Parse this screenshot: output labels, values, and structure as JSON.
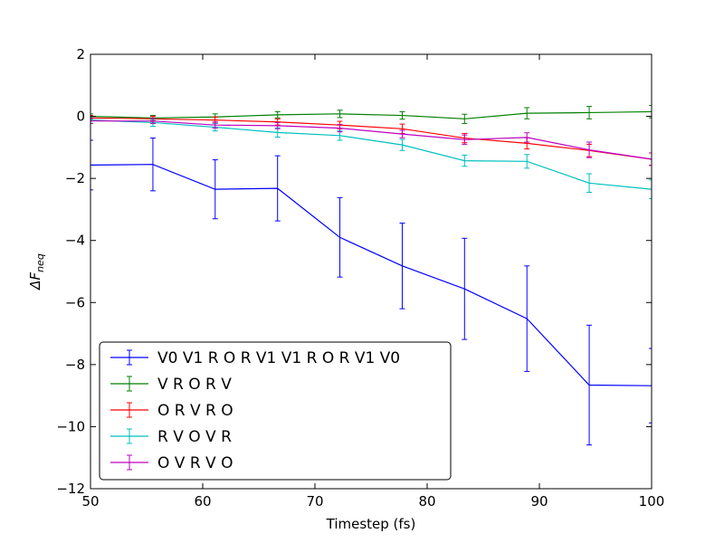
{
  "chart_data": {
    "type": "line",
    "xlabel": "Timestep (fs)",
    "ylabel": "ΔF_neq",
    "ylabel_main": "ΔF",
    "ylabel_sub": "neq",
    "xlim": [
      50,
      100
    ],
    "ylim": [
      -12,
      2
    ],
    "xticks": [
      50,
      60,
      70,
      80,
      90,
      100
    ],
    "yticks": [
      -12,
      -10,
      -8,
      -6,
      -4,
      -2,
      0,
      2
    ],
    "xtick_labels": [
      "50",
      "60",
      "70",
      "80",
      "90",
      "100"
    ],
    "ytick_labels": [
      "−12",
      "−10",
      "−8",
      "−6",
      "−4",
      "−2",
      "0",
      "2"
    ],
    "grid": false,
    "legend_placement": "lower-left",
    "x": [
      50.0,
      55.56,
      61.11,
      66.67,
      72.22,
      77.78,
      83.33,
      88.89,
      94.44,
      100.0
    ],
    "series": [
      {
        "name": "V0 V1 R O R V1 V1 R O R V1 V0",
        "color": "#0000ff",
        "y": [
          -1.57,
          -1.55,
          -2.35,
          -2.32,
          -3.9,
          -4.82,
          -5.56,
          -6.52,
          -8.66,
          -8.68
        ],
        "err": [
          0.8,
          0.85,
          0.95,
          1.05,
          1.28,
          1.38,
          1.63,
          1.7,
          1.93,
          1.2
        ]
      },
      {
        "name": "V R O R V",
        "color": "#008000",
        "y": [
          0.0,
          -0.05,
          -0.02,
          0.05,
          0.08,
          0.03,
          -0.08,
          0.1,
          0.12,
          0.15
        ],
        "err": [
          0.08,
          0.08,
          0.1,
          0.1,
          0.12,
          0.12,
          0.15,
          0.18,
          0.2,
          0.2
        ]
      },
      {
        "name": "O R V R O",
        "color": "#ff0000",
        "y": [
          -0.05,
          -0.08,
          -0.12,
          -0.18,
          -0.28,
          -0.4,
          -0.7,
          -0.87,
          -1.1,
          -1.38
        ],
        "err": [
          0.08,
          0.08,
          0.1,
          0.1,
          0.12,
          0.15,
          0.15,
          0.18,
          0.2,
          0.2
        ]
      },
      {
        "name": "R V O V R",
        "color": "#00bfbf",
        "y": [
          -0.12,
          -0.2,
          -0.35,
          -0.52,
          -0.62,
          -0.92,
          -1.43,
          -1.45,
          -2.15,
          -2.35
        ],
        "err": [
          0.1,
          0.12,
          0.12,
          0.15,
          0.15,
          0.18,
          0.18,
          0.22,
          0.3,
          0.3
        ]
      },
      {
        "name": "O V R V O",
        "color": "#bf00bf",
        "y": [
          -0.15,
          -0.15,
          -0.28,
          -0.3,
          -0.38,
          -0.57,
          -0.75,
          -0.68,
          -1.08,
          -1.38
        ],
        "err": [
          0.08,
          0.08,
          0.1,
          0.1,
          0.12,
          0.12,
          0.15,
          0.15,
          0.25,
          0.2
        ]
      }
    ]
  }
}
